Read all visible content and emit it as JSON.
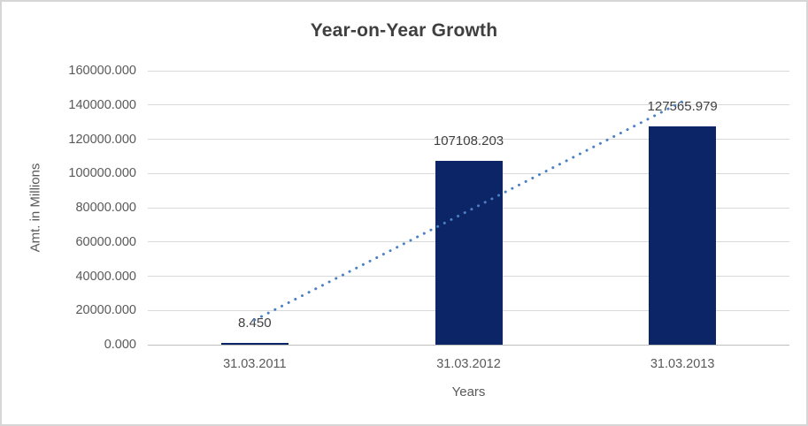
{
  "chart_data": {
    "type": "bar",
    "title": "Year-on-Year Growth",
    "xlabel": "Years",
    "ylabel": "Amt. in Millions",
    "categories": [
      "31.03.2011",
      "31.03.2012",
      "31.03.2013"
    ],
    "values": [
      8.45,
      107108.203,
      127565.979
    ],
    "data_labels": [
      "8.450",
      "107108.203",
      "127565.979"
    ],
    "ylim": [
      0,
      160000
    ],
    "ytick_step": 20000,
    "ytick_labels": [
      "0.000",
      "20000.000",
      "40000.000",
      "60000.000",
      "80000.000",
      "100000.000",
      "120000.000",
      "140000.000",
      "160000.000"
    ],
    "grid": true,
    "legend": "none",
    "trendline": {
      "style": "dotted",
      "values": [
        14448.78,
        78227.54,
        142006.31
      ]
    },
    "colors": {
      "bar": "#0c2566",
      "trendline": "#4a80c4",
      "gridline": "#d9d9d9",
      "axis_line": "#bfbfbf",
      "title_text": "#3f3f3f",
      "tick_text": "#595959",
      "data_label_text": "#404040",
      "border": "#d6d6d6",
      "background": "#ffffff"
    }
  }
}
